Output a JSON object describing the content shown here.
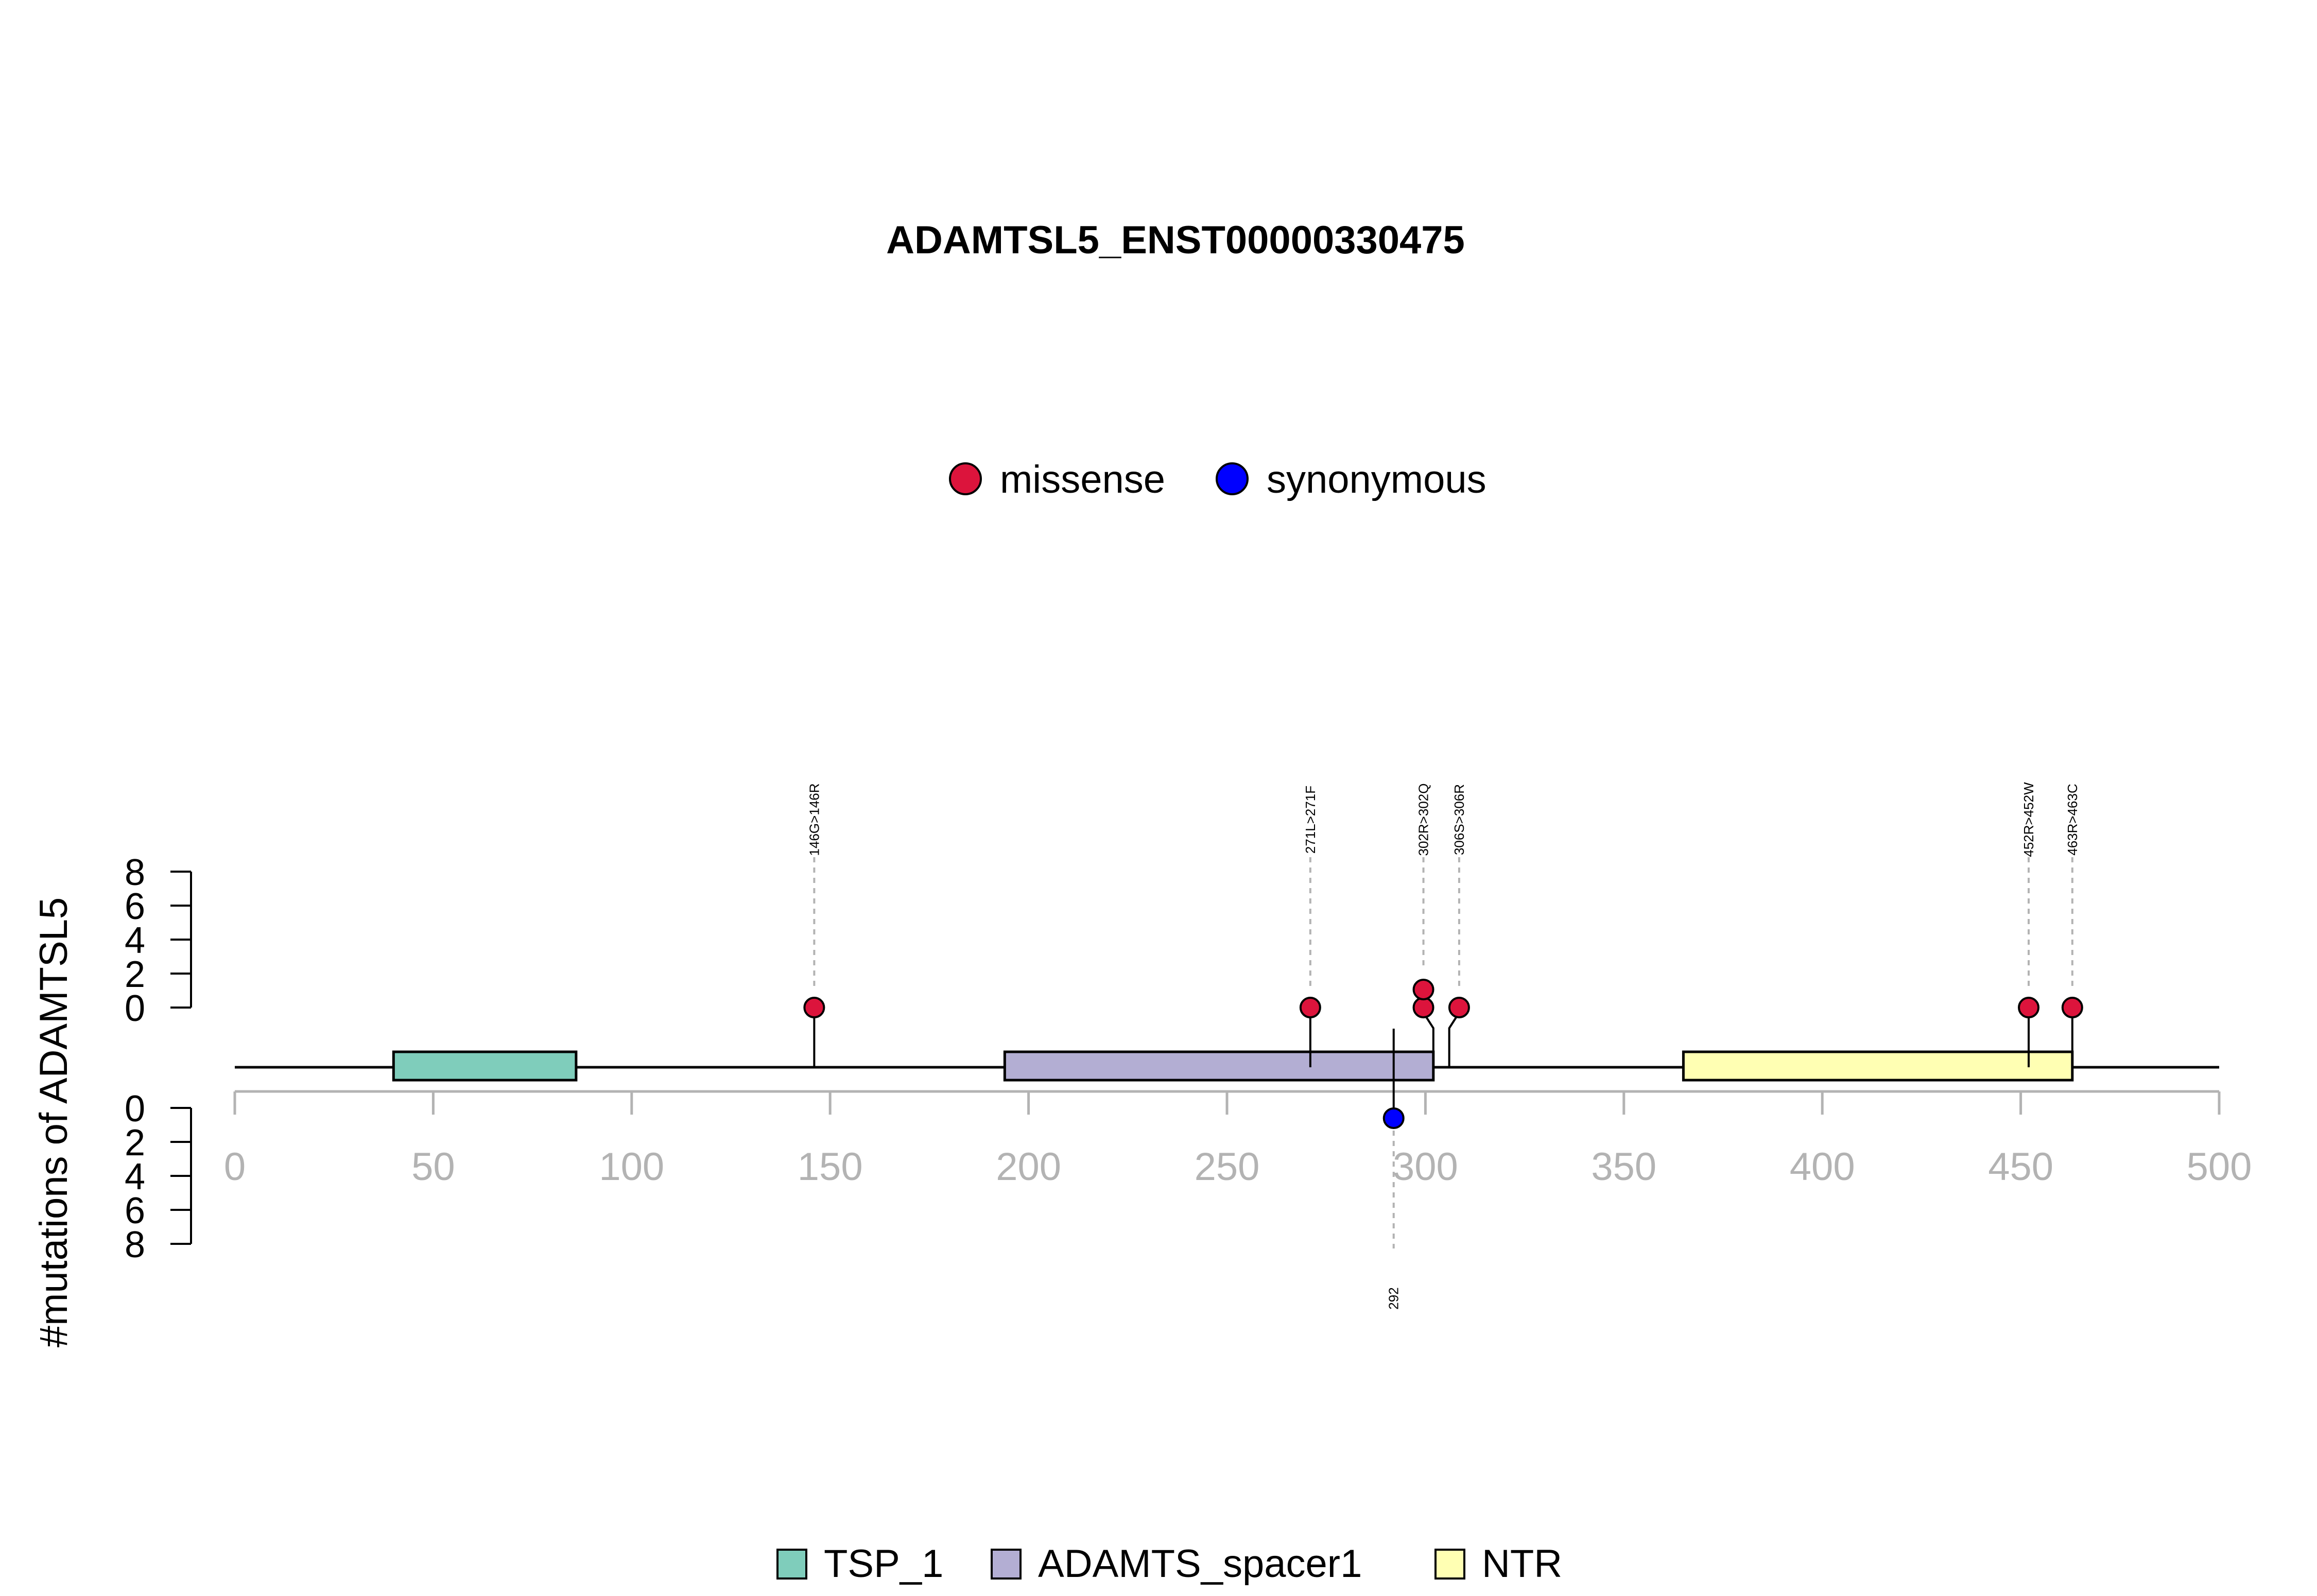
{
  "chart_data": {
    "type": "lollipop",
    "title": "ADAMTSL5_ENST00000330475",
    "ylabel": "#mutations of ADAMTSL5",
    "xlim": [
      0,
      500
    ],
    "x_ticks": [
      "0",
      "50",
      "100",
      "150",
      "200",
      "250",
      "300",
      "350",
      "400",
      "450",
      "500"
    ],
    "upper_y_ticks": [
      "0",
      "2",
      "4",
      "6",
      "8"
    ],
    "lower_y_ticks": [
      "0",
      "2",
      "4",
      "6",
      "8"
    ],
    "mutation_legend": [
      {
        "name": "missense",
        "color": "#DC143C"
      },
      {
        "name": "synonymous",
        "color": "#0000FF"
      }
    ],
    "domain_legend": [
      {
        "name": "TSP_1",
        "color": "#7FCDBB"
      },
      {
        "name": "ADAMTS_spacer1",
        "color": "#B3AED3"
      },
      {
        "name": "NTR",
        "color": "#FFFFB3"
      }
    ],
    "domains": [
      {
        "name": "TSP_1",
        "start": 40,
        "end": 86,
        "color": "#7FCDBB"
      },
      {
        "name": "ADAMTS_spacer1",
        "start": 194,
        "end": 302,
        "color": "#B3AED3"
      },
      {
        "name": "NTR",
        "start": 365,
        "end": 463,
        "color": "#FFFFB3"
      }
    ],
    "mutations_upper": [
      {
        "position": 146,
        "label": "146G>146R",
        "count": 1,
        "type": "missense",
        "display_x": 146
      },
      {
        "position": 271,
        "label": "271L>271F",
        "count": 1,
        "type": "missense",
        "display_x": 271
      },
      {
        "position": 302,
        "label": "302R>302Q",
        "count": 2,
        "type": "missense",
        "display_x": 299.5
      },
      {
        "position": 306,
        "label": "306S>306R",
        "count": 1,
        "type": "missense",
        "display_x": 308.5
      },
      {
        "position": 452,
        "label": "452R>452W",
        "count": 1,
        "type": "missense",
        "display_x": 452
      },
      {
        "position": 463,
        "label": "463R>463C",
        "count": 1,
        "type": "missense",
        "display_x": 463
      }
    ],
    "mutations_lower": [
      {
        "position": 292,
        "label": "292",
        "count": 1,
        "type": "synonymous",
        "display_x": 292
      }
    ]
  }
}
